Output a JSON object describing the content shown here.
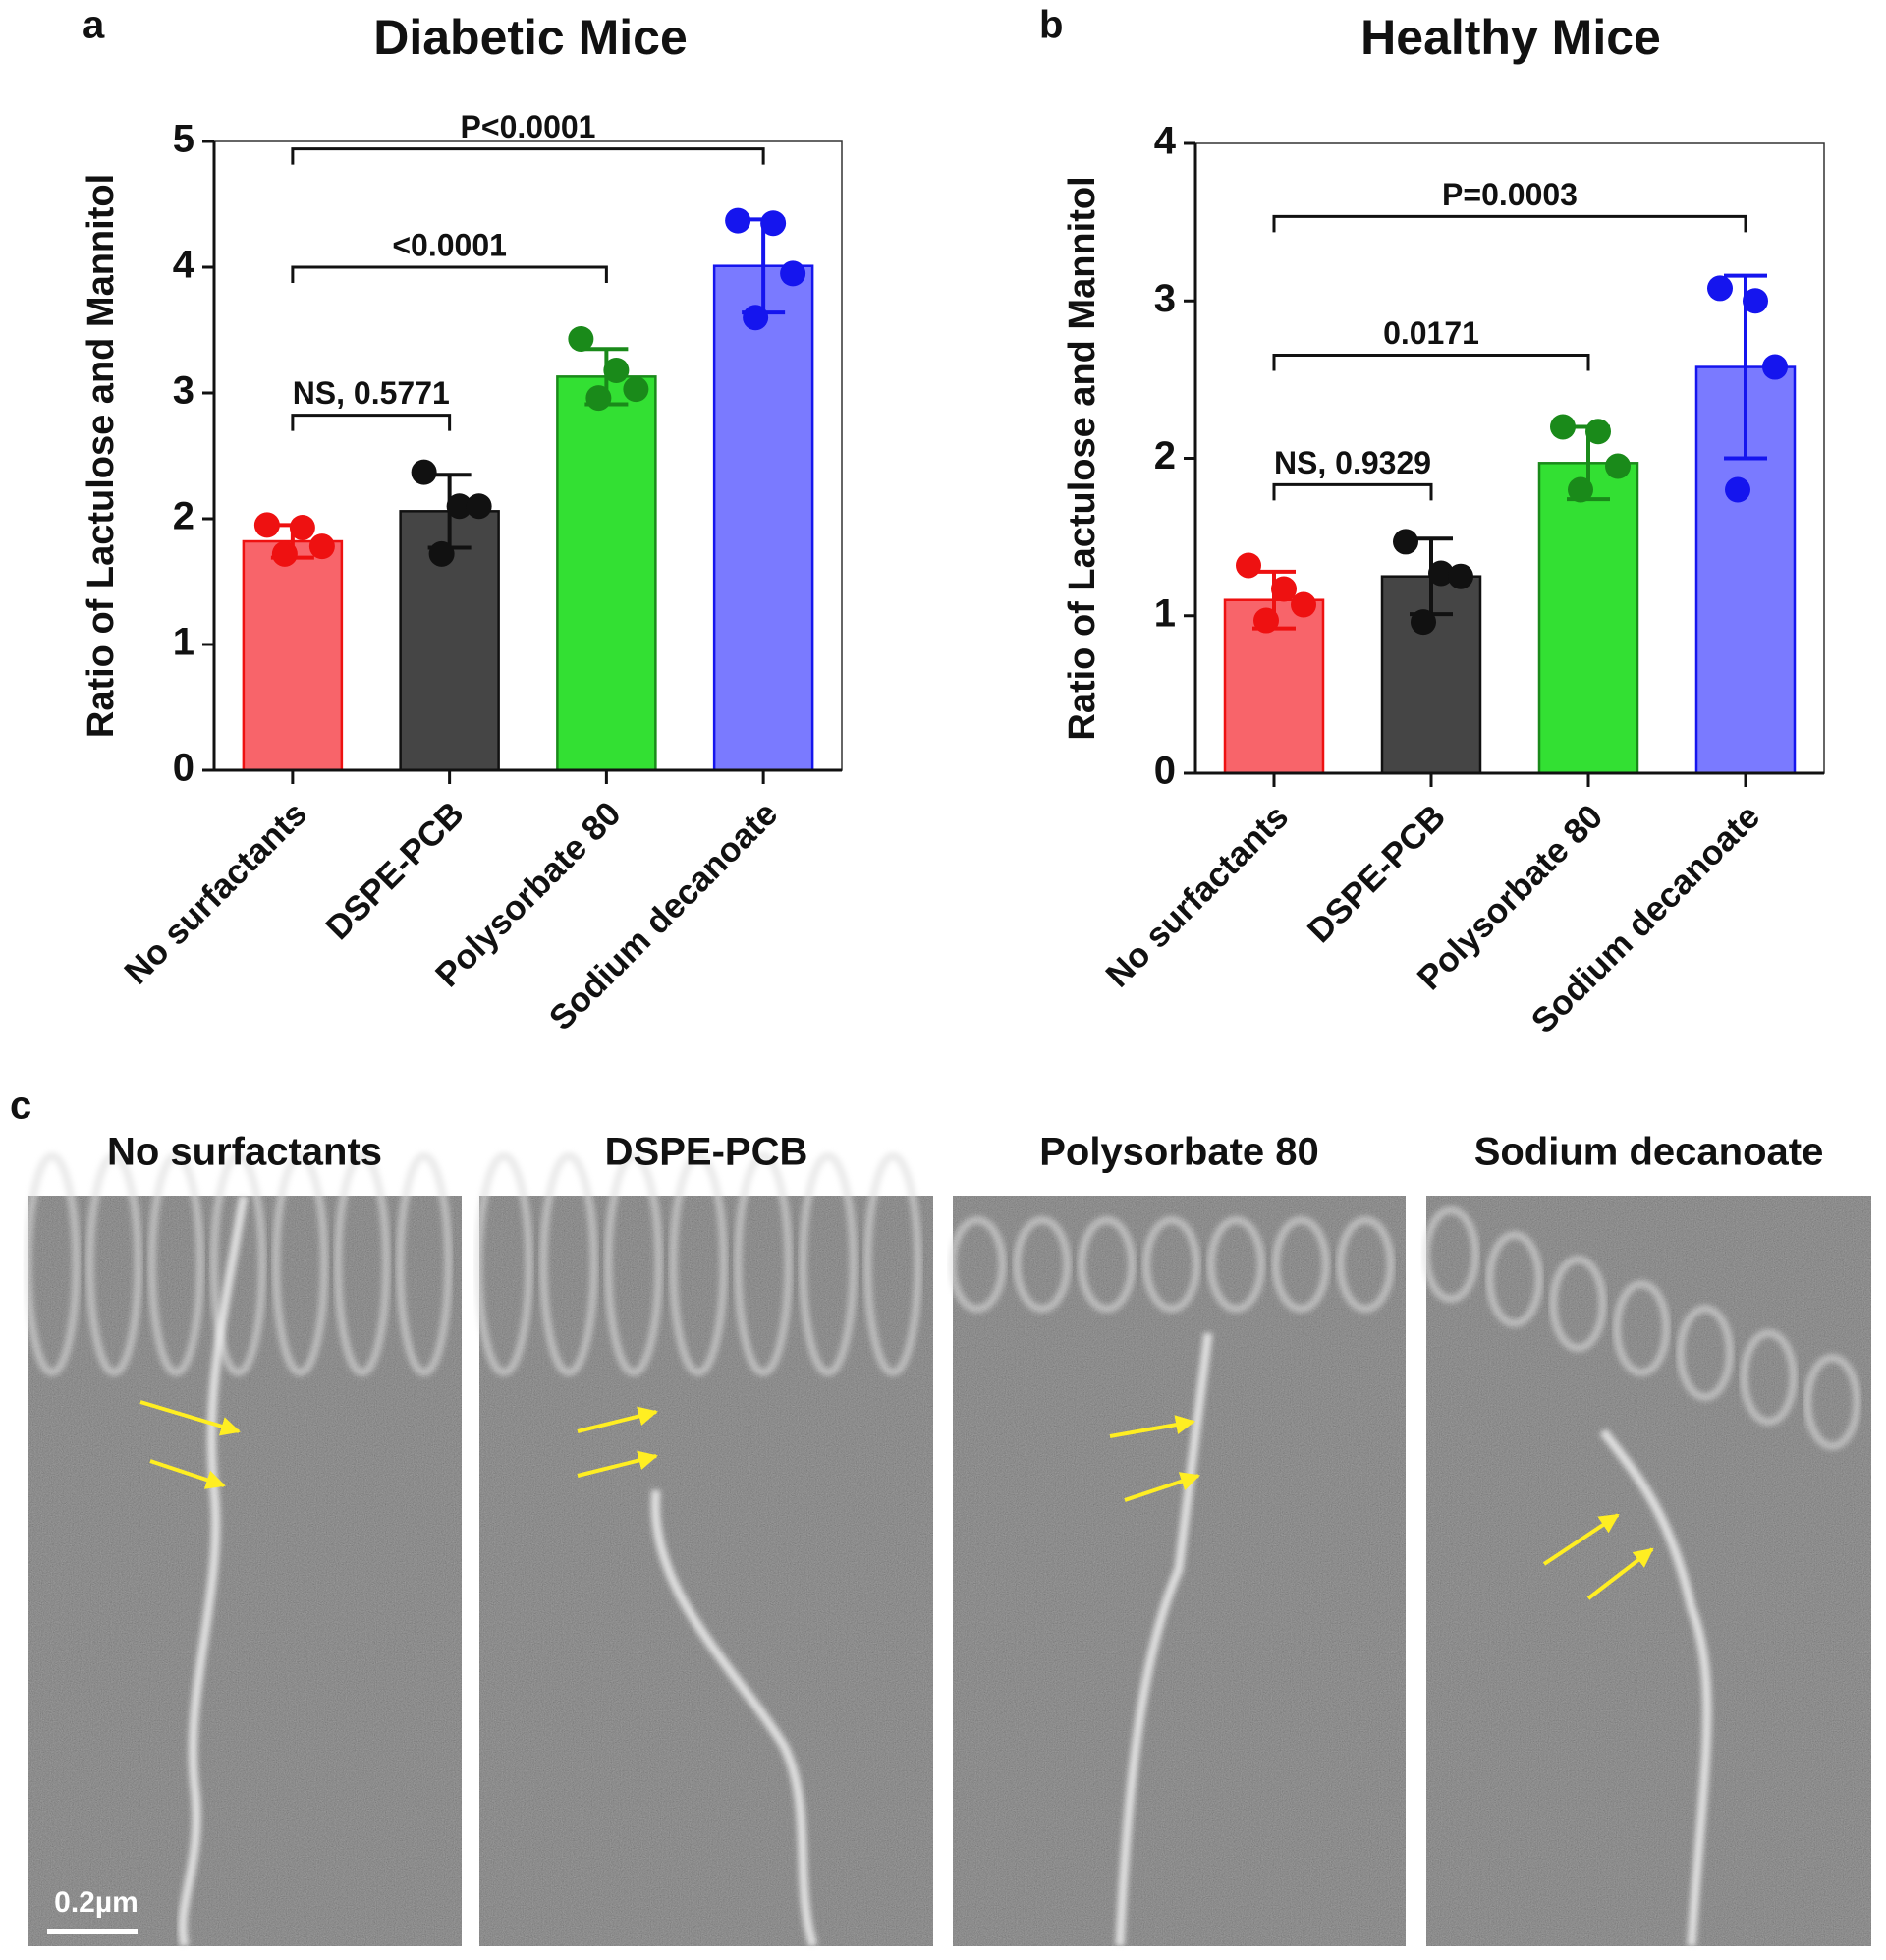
{
  "chart_data": [
    {
      "type": "bar",
      "panel_label": "a",
      "title": "Diabetic Mice",
      "y_label": "Ratio of Lactulose and Mannitol",
      "categories": [
        "No surfactants",
        "DSPE-PCB",
        "Polysorbate 80",
        "Sodium decanoate"
      ],
      "values": [
        1.82,
        2.06,
        3.13,
        4.01
      ],
      "errors": [
        0.13,
        0.29,
        0.22,
        0.37
      ],
      "points": [
        [
          1.95,
          1.93,
          1.78,
          1.72
        ],
        [
          2.37,
          2.1,
          2.1,
          1.72
        ],
        [
          3.43,
          3.18,
          3.03,
          2.96
        ],
        [
          4.37,
          4.35,
          3.95,
          3.6
        ]
      ],
      "colors": [
        "#f8646a",
        "#454545",
        "#33e033",
        "#7a7aff"
      ],
      "point_colors": [
        "#ee1111",
        "#111111",
        "#1a8a1a",
        "#1515ee"
      ],
      "comparisons": [
        {
          "from": 0,
          "to": 1,
          "label": "NS, 0.5771"
        },
        {
          "from": 0,
          "to": 2,
          "label": "<0.0001"
        },
        {
          "from": 0,
          "to": 3,
          "label": "P<0.0001"
        }
      ],
      "ylim": [
        0,
        5
      ],
      "yticks": [
        0,
        1,
        2,
        3,
        4,
        5
      ]
    },
    {
      "type": "bar",
      "panel_label": "b",
      "title": "Healthy Mice",
      "y_label": "Ratio of Lactulose and Mannitol",
      "categories": [
        "No surfactants",
        "DSPE-PCB",
        "Polysorbate 80",
        "Sodium decanoate"
      ],
      "values": [
        1.1,
        1.25,
        1.97,
        2.58
      ],
      "errors": [
        0.18,
        0.24,
        0.23,
        0.58
      ],
      "points": [
        [
          1.32,
          1.17,
          1.07,
          0.97
        ],
        [
          1.47,
          1.27,
          1.25,
          0.96
        ],
        [
          2.2,
          2.17,
          1.95,
          1.8
        ],
        [
          3.08,
          3.0,
          2.58,
          1.8
        ]
      ],
      "colors": [
        "#f8646a",
        "#454545",
        "#33e033",
        "#7a7aff"
      ],
      "point_colors": [
        "#ee1111",
        "#111111",
        "#1a8a1a",
        "#1515ee"
      ],
      "comparisons": [
        {
          "from": 0,
          "to": 1,
          "label": "NS, 0.9329"
        },
        {
          "from": 0,
          "to": 2,
          "label": "0.0171"
        },
        {
          "from": 0,
          "to": 3,
          "label": "P=0.0003"
        }
      ],
      "ylim": [
        0,
        4
      ],
      "yticks": [
        0,
        1,
        2,
        3,
        4
      ]
    }
  ],
  "panel_c": {
    "label": "c",
    "titles": [
      "No surfactants",
      "DSPE-PCB",
      "Polysorbate 80",
      "Sodium decanoate"
    ],
    "scale_bar": "0.2µm"
  }
}
